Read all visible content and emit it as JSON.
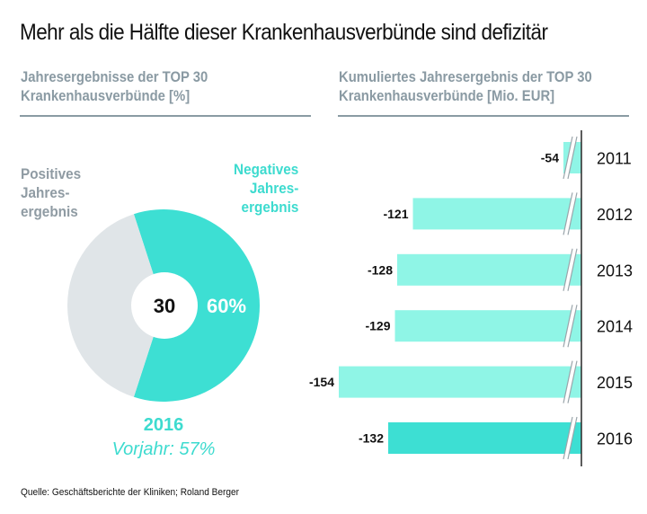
{
  "title": "Mehr als die Hälfte dieser Krankenhausverbünde sind defizitär",
  "left_panel": {
    "heading_line1": "Jahresergebnisse der TOP 30",
    "heading_line2": "Krankenhausverbünde [%]",
    "legend_positive": [
      "Positives",
      "Jahres-",
      "ergebnis"
    ],
    "legend_negative": [
      "Negatives",
      "Jahres-",
      "ergebnis"
    ],
    "year": "2016",
    "previous_year": "Vorjahr: 57%"
  },
  "right_panel": {
    "heading_line1": "Kumuliertes Jahresergebnis der TOP 30",
    "heading_line2": "Krankenhausverbünde [Mio. EUR]"
  },
  "source": "Quelle: Geschäftsberichte der Kliniken; Roland Berger",
  "colors": {
    "negative": "#3ddfd3",
    "positive": "#e0e5e8",
    "bar_light": "#8ff5e6",
    "bar_highlight": "#3ddfd3",
    "axis": "#333333",
    "rule": "#8a9ba3",
    "break_mark": "#9aa5ab"
  },
  "chart_data": [
    {
      "type": "pie",
      "title": "Jahresergebnisse der TOP 30 Krankenhausverbünde [%]",
      "center_label": "30",
      "year": "2016",
      "slices": [
        {
          "name": "Negatives Jahresergebnis",
          "value": 60,
          "label": "60%"
        },
        {
          "name": "Positives Jahresergebnis",
          "value": 40,
          "label": ""
        }
      ],
      "annotation": "Vorjahr: 57%"
    },
    {
      "type": "bar",
      "orientation": "horizontal",
      "title": "Kumuliertes Jahresergebnis der TOP 30 Krankenhausverbünde [Mio. EUR]",
      "categories": [
        "2011",
        "2012",
        "2013",
        "2014",
        "2015",
        "2016"
      ],
      "values": [
        -54,
        -121,
        -128,
        -129,
        -154,
        -132
      ],
      "labels": [
        "-54",
        "-121",
        "-128",
        "-129",
        "-154",
        "-132"
      ],
      "highlight": "2016",
      "axis_break": true,
      "xlabel": "",
      "ylabel": ""
    }
  ]
}
